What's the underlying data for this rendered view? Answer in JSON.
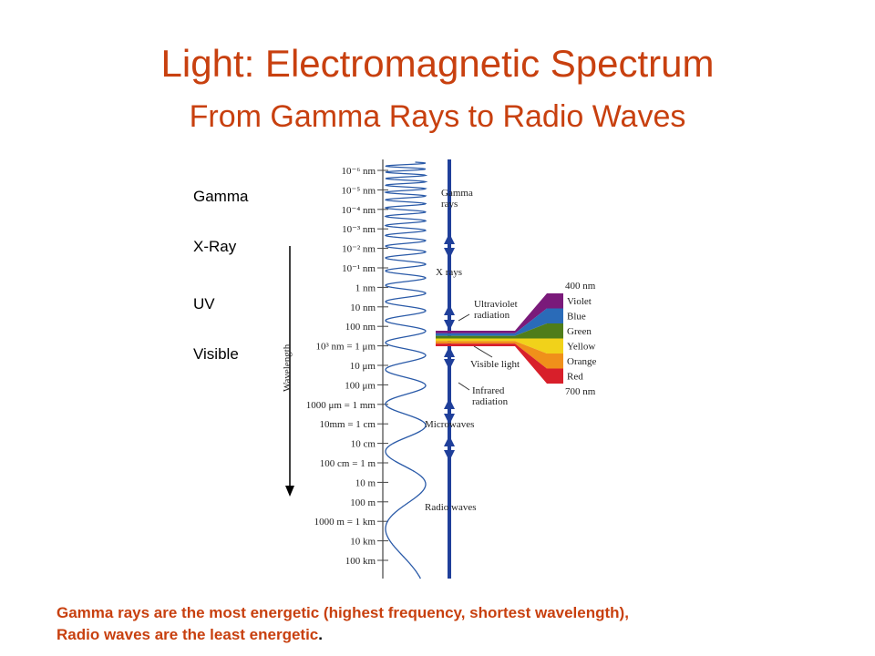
{
  "header": {
    "title": "Light: Electromagnetic Spectrum",
    "subtitle": "From Gamma Rays to Radio Waves"
  },
  "side_labels": [
    "Gamma",
    "X-Ray",
    "UV",
    "Visible"
  ],
  "diagram": {
    "axis_label": "Wavelength",
    "scale": [
      "10⁻⁶ nm",
      "10⁻⁵ nm",
      "10⁻⁴ nm",
      "10⁻³ nm",
      "10⁻² nm",
      "10⁻¹ nm",
      "1 nm",
      "10 nm",
      "100 nm",
      "10³ nm = 1 μm",
      "10 μm",
      "100 μm",
      "1000 μm = 1 mm",
      "10mm = 1 cm",
      "10 cm",
      "100 cm = 1 m",
      "10 m",
      "100 m",
      "1000 m = 1 km",
      "10 km",
      "100 km"
    ],
    "regions": [
      "Gamma rays",
      "X rays",
      "Ultraviolet radiation",
      "Visible light",
      "Infrared radiation",
      "Microwaves",
      "Radio waves"
    ],
    "visible": {
      "top": "400 nm",
      "bottom": "700 nm",
      "colors": [
        "Violet",
        "Blue",
        "Green",
        "Yellow",
        "Orange",
        "Red"
      ]
    }
  },
  "footer": {
    "line1": "Gamma rays are the most energetic (highest frequency, shortest wavelength),",
    "line2": "Radio waves are the least energetic",
    "end": "."
  }
}
